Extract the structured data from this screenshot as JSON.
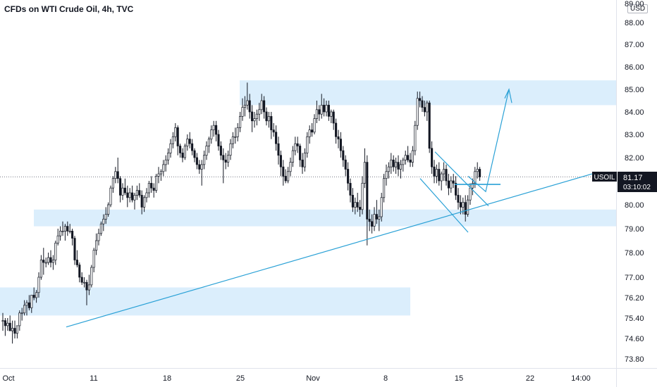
{
  "header": {
    "title": "CFDs on WTI Crude Oil, 4h, TVC",
    "currency": "USD"
  },
  "price_label": {
    "symbol": "USOIL",
    "price": "81.17",
    "countdown": "03:10:02"
  },
  "colors": {
    "up": "#26a69a",
    "down": "#131722",
    "zone": "#dbeefc",
    "line": "#2aa1d6",
    "axis_text": "#131722",
    "price_line": "#787b86"
  },
  "chart_data": {
    "type": "candlestick",
    "title": "CFDs on WTI Crude Oil, 4h, TVC",
    "xlabel": "",
    "ylabel": "",
    "ylim": [
      73.4,
      89.0
    ],
    "y_ticks": [
      "89.00",
      "88.00",
      "87.00",
      "86.00",
      "85.00",
      "84.00",
      "83.00",
      "82.00",
      "81.00",
      "80.00",
      "79.00",
      "78.00",
      "77.00",
      "76.20",
      "75.40",
      "74.60",
      "73.80"
    ],
    "x_ticks": [
      "Oct",
      "11",
      "18",
      "25",
      "Nov",
      "8",
      "15",
      "22",
      "14:00"
    ],
    "last_price": 81.17,
    "zones": [
      {
        "from_x": "25",
        "to_x": "end",
        "low": 84.3,
        "high": 85.4
      },
      {
        "from_x": "Oct",
        "to_x": "end",
        "low": 79.1,
        "high": 79.8
      },
      {
        "from_x": "Oct",
        "to_x": "Nov",
        "low": 75.5,
        "high": 76.6
      }
    ],
    "drawings": [
      "ascending trendline",
      "falling wedge",
      "horizontal breakout level",
      "projected path arrow"
    ],
    "candles": [
      [
        75.3,
        75.6,
        74.9,
        75.3
      ],
      [
        75.3,
        75.4,
        74.7,
        75.1
      ],
      [
        75.1,
        75.4,
        74.9,
        75.2
      ],
      [
        75.2,
        75.5,
        74.9,
        74.9
      ],
      [
        74.9,
        75.3,
        74.4,
        75.0
      ],
      [
        75.0,
        75.3,
        74.6,
        74.8
      ],
      [
        74.8,
        75.1,
        74.6,
        75.1
      ],
      [
        75.1,
        75.7,
        74.9,
        75.6
      ],
      [
        75.6,
        75.8,
        75.3,
        75.6
      ],
      [
        75.6,
        76.1,
        75.5,
        75.9
      ],
      [
        75.9,
        76.1,
        75.5,
        76.0
      ],
      [
        76.0,
        76.3,
        75.7,
        75.8
      ],
      [
        75.8,
        76.3,
        75.6,
        76.3
      ],
      [
        76.3,
        76.6,
        76.1,
        76.2
      ],
      [
        76.2,
        76.5,
        76.0,
        76.4
      ],
      [
        76.4,
        77.2,
        76.2,
        77.0
      ],
      [
        77.0,
        77.9,
        76.9,
        77.7
      ],
      [
        77.7,
        78.2,
        77.1,
        77.6
      ],
      [
        77.6,
        77.8,
        77.4,
        77.6
      ],
      [
        77.6,
        78.0,
        77.5,
        77.8
      ],
      [
        77.8,
        78.1,
        77.4,
        77.6
      ],
      [
        77.6,
        77.9,
        77.3,
        77.7
      ],
      [
        77.7,
        78.5,
        77.5,
        78.4
      ],
      [
        78.4,
        79.0,
        78.3,
        78.7
      ],
      [
        78.7,
        79.1,
        78.5,
        78.9
      ],
      [
        78.9,
        79.3,
        78.7,
        78.9
      ],
      [
        78.9,
        79.2,
        78.5,
        79.1
      ],
      [
        79.1,
        79.3,
        78.7,
        78.9
      ],
      [
        78.9,
        79.2,
        78.8,
        78.9
      ],
      [
        78.9,
        79.0,
        78.3,
        78.6
      ],
      [
        78.6,
        78.7,
        77.5,
        77.7
      ],
      [
        77.7,
        78.1,
        77.4,
        77.5
      ],
      [
        77.5,
        77.6,
        76.8,
        77.0
      ],
      [
        77.0,
        77.2,
        76.7,
        76.8
      ],
      [
        76.8,
        77.0,
        76.6,
        76.8
      ],
      [
        76.8,
        76.9,
        75.9,
        76.5
      ],
      [
        76.5,
        77.1,
        76.3,
        76.7
      ],
      [
        76.7,
        77.5,
        76.6,
        77.4
      ],
      [
        77.4,
        78.2,
        77.2,
        78.1
      ],
      [
        78.1,
        78.8,
        77.9,
        78.5
      ],
      [
        78.5,
        79.0,
        78.3,
        78.8
      ],
      [
        78.8,
        79.3,
        78.7,
        79.2
      ],
      [
        79.2,
        79.6,
        78.9,
        79.4
      ],
      [
        79.4,
        79.9,
        79.2,
        79.6
      ],
      [
        79.6,
        80.1,
        79.5,
        80.0
      ],
      [
        80.0,
        80.8,
        79.9,
        80.7
      ],
      [
        80.7,
        81.2,
        80.5,
        81.1
      ],
      [
        81.1,
        81.6,
        80.9,
        81.4
      ],
      [
        81.4,
        82.0,
        80.9,
        81.1
      ],
      [
        81.1,
        81.2,
        80.1,
        80.4
      ],
      [
        80.4,
        80.9,
        80.2,
        80.7
      ],
      [
        80.7,
        81.1,
        80.4,
        80.5
      ],
      [
        80.5,
        80.8,
        79.9,
        80.3
      ],
      [
        80.3,
        80.7,
        80.1,
        80.5
      ],
      [
        80.5,
        80.8,
        80.1,
        80.2
      ],
      [
        80.2,
        80.5,
        79.8,
        80.4
      ],
      [
        80.4,
        80.8,
        80.2,
        80.6
      ],
      [
        80.6,
        80.9,
        80.3,
        80.4
      ],
      [
        80.4,
        80.6,
        79.6,
        79.9
      ],
      [
        79.9,
        80.4,
        79.7,
        80.3
      ],
      [
        80.3,
        80.7,
        80.1,
        80.5
      ],
      [
        80.5,
        81.0,
        80.3,
        80.9
      ],
      [
        80.9,
        81.2,
        80.5,
        80.7
      ],
      [
        80.7,
        80.9,
        80.3,
        80.6
      ],
      [
        80.6,
        81.3,
        80.5,
        81.2
      ],
      [
        81.2,
        81.6,
        80.9,
        81.3
      ],
      [
        81.3,
        81.5,
        81.0,
        81.4
      ],
      [
        81.4,
        81.9,
        81.2,
        81.7
      ],
      [
        81.7,
        82.1,
        81.4,
        81.9
      ],
      [
        81.9,
        82.4,
        81.7,
        82.2
      ],
      [
        82.2,
        82.8,
        82.0,
        82.6
      ],
      [
        82.6,
        83.1,
        82.4,
        82.9
      ],
      [
        82.9,
        83.5,
        82.7,
        83.3
      ],
      [
        83.3,
        83.4,
        82.1,
        82.5
      ],
      [
        82.5,
        82.6,
        82.0,
        82.2
      ],
      [
        82.2,
        82.4,
        81.8,
        82.0
      ],
      [
        82.0,
        82.6,
        81.9,
        82.5
      ],
      [
        82.5,
        83.0,
        82.3,
        82.8
      ],
      [
        82.8,
        83.1,
        82.4,
        82.6
      ],
      [
        82.6,
        82.8,
        82.1,
        82.3
      ],
      [
        82.3,
        82.4,
        81.8,
        82.0
      ],
      [
        82.0,
        82.2,
        81.5,
        81.7
      ],
      [
        81.7,
        81.9,
        81.3,
        81.5
      ],
      [
        81.5,
        81.9,
        80.8,
        81.7
      ],
      [
        81.7,
        82.3,
        81.5,
        82.1
      ],
      [
        82.1,
        82.7,
        81.9,
        82.5
      ],
      [
        82.5,
        82.9,
        82.2,
        82.8
      ],
      [
        82.8,
        83.4,
        82.6,
        83.2
      ],
      [
        83.2,
        83.6,
        82.9,
        83.4
      ],
      [
        83.4,
        83.6,
        82.7,
        83.0
      ],
      [
        83.0,
        83.2,
        82.3,
        82.5
      ],
      [
        82.5,
        82.7,
        81.9,
        82.1
      ],
      [
        82.1,
        82.4,
        80.9,
        81.9
      ],
      [
        81.9,
        82.2,
        81.5,
        81.8
      ],
      [
        81.8,
        82.3,
        81.6,
        82.1
      ],
      [
        82.1,
        82.8,
        81.9,
        82.6
      ],
      [
        82.6,
        83.1,
        82.4,
        82.9
      ],
      [
        82.9,
        83.3,
        82.6,
        82.9
      ],
      [
        82.9,
        83.5,
        82.7,
        83.3
      ],
      [
        83.3,
        84.0,
        83.1,
        83.8
      ],
      [
        83.8,
        84.6,
        83.6,
        84.2
      ],
      [
        84.2,
        84.7,
        83.8,
        84.3
      ],
      [
        84.3,
        85.3,
        84.1,
        84.5
      ],
      [
        84.5,
        84.8,
        83.7,
        84.0
      ],
      [
        84.0,
        84.3,
        83.1,
        83.6
      ],
      [
        83.6,
        84.0,
        83.3,
        83.7
      ],
      [
        83.7,
        84.1,
        83.4,
        83.9
      ],
      [
        83.9,
        84.4,
        83.6,
        84.1
      ],
      [
        84.1,
        84.8,
        83.9,
        84.5
      ],
      [
        84.5,
        84.7,
        83.7,
        84.0
      ],
      [
        84.0,
        84.2,
        83.4,
        83.6
      ],
      [
        83.6,
        84.0,
        83.3,
        83.8
      ],
      [
        83.8,
        84.0,
        82.8,
        83.2
      ],
      [
        83.2,
        83.5,
        82.9,
        83.1
      ],
      [
        83.1,
        83.4,
        82.3,
        82.6
      ],
      [
        82.6,
        82.9,
        81.7,
        82.1
      ],
      [
        82.1,
        82.3,
        81.2,
        81.6
      ],
      [
        81.6,
        81.9,
        80.8,
        81.2
      ],
      [
        81.2,
        81.5,
        80.9,
        81.0
      ],
      [
        81.0,
        81.6,
        80.9,
        81.4
      ],
      [
        81.4,
        82.0,
        81.2,
        81.8
      ],
      [
        81.8,
        82.5,
        81.6,
        82.3
      ],
      [
        82.3,
        82.9,
        82.1,
        82.6
      ],
      [
        82.6,
        82.9,
        82.2,
        82.5
      ],
      [
        82.5,
        82.6,
        81.6,
        81.9
      ],
      [
        81.9,
        82.2,
        81.3,
        81.6
      ],
      [
        81.6,
        82.4,
        81.4,
        82.2
      ],
      [
        82.2,
        83.1,
        82.0,
        82.9
      ],
      [
        82.9,
        83.4,
        82.6,
        83.2
      ],
      [
        83.2,
        83.5,
        82.9,
        83.1
      ],
      [
        83.1,
        83.9,
        83.0,
        83.7
      ],
      [
        83.7,
        84.5,
        83.5,
        84.1
      ],
      [
        84.1,
        84.3,
        83.6,
        83.9
      ],
      [
        83.9,
        84.8,
        83.7,
        84.3
      ],
      [
        84.3,
        84.6,
        83.8,
        84.0
      ],
      [
        84.0,
        84.5,
        83.8,
        84.3
      ],
      [
        84.3,
        84.5,
        83.6,
        83.8
      ],
      [
        83.8,
        84.1,
        83.5,
        84.0
      ],
      [
        84.0,
        84.1,
        83.2,
        83.5
      ],
      [
        83.5,
        83.7,
        82.6,
        82.9
      ],
      [
        82.9,
        83.2,
        82.4,
        82.8
      ],
      [
        82.8,
        83.1,
        82.0,
        82.3
      ],
      [
        82.3,
        82.5,
        81.6,
        81.9
      ],
      [
        81.9,
        82.1,
        81.2,
        81.5
      ],
      [
        81.5,
        81.8,
        80.6,
        80.9
      ],
      [
        80.9,
        81.1,
        80.1,
        80.4
      ],
      [
        80.4,
        80.7,
        79.7,
        79.9
      ],
      [
        79.9,
        80.3,
        79.6,
        80.1
      ],
      [
        80.1,
        80.5,
        79.7,
        79.9
      ],
      [
        79.9,
        80.2,
        79.5,
        79.8
      ],
      [
        79.8,
        81.2,
        79.6,
        80.9
      ],
      [
        80.9,
        82.4,
        80.7,
        81.8
      ],
      [
        81.8,
        82.1,
        78.3,
        79.4
      ],
      [
        79.4,
        79.8,
        78.9,
        79.3
      ],
      [
        79.3,
        79.6,
        78.8,
        79.1
      ],
      [
        79.1,
        79.9,
        78.9,
        79.6
      ],
      [
        79.6,
        80.2,
        79.2,
        79.4
      ],
      [
        79.4,
        79.8,
        78.9,
        79.5
      ],
      [
        79.5,
        80.5,
        79.3,
        80.3
      ],
      [
        80.3,
        81.3,
        80.1,
        81.1
      ],
      [
        81.1,
        81.7,
        80.8,
        81.4
      ],
      [
        81.4,
        81.8,
        81.1,
        81.6
      ],
      [
        81.6,
        82.2,
        81.3,
        81.9
      ],
      [
        81.9,
        82.1,
        81.4,
        81.6
      ],
      [
        81.6,
        82.0,
        81.3,
        81.8
      ],
      [
        81.8,
        82.1,
        81.2,
        81.5
      ],
      [
        81.5,
        81.9,
        81.1,
        81.7
      ],
      [
        81.7,
        82.0,
        81.4,
        81.9
      ],
      [
        81.9,
        82.3,
        81.7,
        82.1
      ],
      [
        82.1,
        82.5,
        81.8,
        81.9
      ],
      [
        81.9,
        82.2,
        81.6,
        81.8
      ],
      [
        81.8,
        82.5,
        81.6,
        82.3
      ],
      [
        82.3,
        83.6,
        82.1,
        83.4
      ],
      [
        83.4,
        84.9,
        83.2,
        84.6
      ],
      [
        84.6,
        84.9,
        84.2,
        84.5
      ],
      [
        84.5,
        84.7,
        84.0,
        84.2
      ],
      [
        84.2,
        84.5,
        83.8,
        84.0
      ],
      [
        84.0,
        84.5,
        83.6,
        84.4
      ],
      [
        84.4,
        84.5,
        82.2,
        82.4
      ],
      [
        82.4,
        82.7,
        81.3,
        81.6
      ],
      [
        81.6,
        81.9,
        80.9,
        81.2
      ],
      [
        81.2,
        81.7,
        80.9,
        81.5
      ],
      [
        81.5,
        81.8,
        80.8,
        81.0
      ],
      [
        81.0,
        81.4,
        80.6,
        81.3
      ],
      [
        81.3,
        81.8,
        81.0,
        81.5
      ],
      [
        81.5,
        81.7,
        80.8,
        81.0
      ],
      [
        81.0,
        81.3,
        80.4,
        80.7
      ],
      [
        80.7,
        81.2,
        80.5,
        81.0
      ],
      [
        81.0,
        81.3,
        80.7,
        80.9
      ],
      [
        80.9,
        81.2,
        80.2,
        80.4
      ],
      [
        80.4,
        80.7,
        79.8,
        80.1
      ],
      [
        80.1,
        80.4,
        79.6,
        79.9
      ],
      [
        79.9,
        80.3,
        79.6,
        80.1
      ],
      [
        80.1,
        80.4,
        79.3,
        79.6
      ],
      [
        79.6,
        80.4,
        79.5,
        80.2
      ],
      [
        80.2,
        80.9,
        80.0,
        80.7
      ],
      [
        80.7,
        81.1,
        80.4,
        80.9
      ],
      [
        80.9,
        81.6,
        80.7,
        81.4
      ],
      [
        81.4,
        81.8,
        81.1,
        81.5
      ],
      [
        81.5,
        81.6,
        81.0,
        81.17
      ]
    ]
  }
}
